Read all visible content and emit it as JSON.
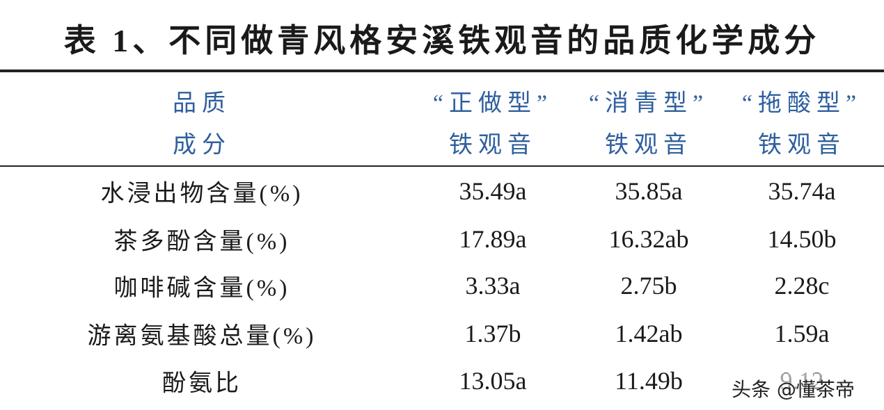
{
  "title": "表 1、不同做青风格安溪铁观音的品质化学成分",
  "table": {
    "header": [
      [
        "品质",
        "成分"
      ],
      [
        "“正做型”",
        "铁观音"
      ],
      [
        "“消青型”",
        "铁观音"
      ],
      [
        "“拖酸型”",
        "铁观音"
      ]
    ],
    "rows": [
      [
        "水浸出物含量(%)",
        "35.49a",
        "35.85a",
        "35.74a"
      ],
      [
        "茶多酚含量(%)",
        "17.89a",
        "16.32ab",
        "14.50b"
      ],
      [
        "咖啡碱含量(%)",
        "3.33a",
        "2.75b",
        "2.28c"
      ],
      [
        "游离氨基酸总量(%)",
        "1.37b",
        "1.42ab",
        "1.59a"
      ],
      [
        "酚氨比",
        "13.05a",
        "11.49b",
        "9.12"
      ]
    ]
  },
  "watermark": "头条 @懂茶帝"
}
